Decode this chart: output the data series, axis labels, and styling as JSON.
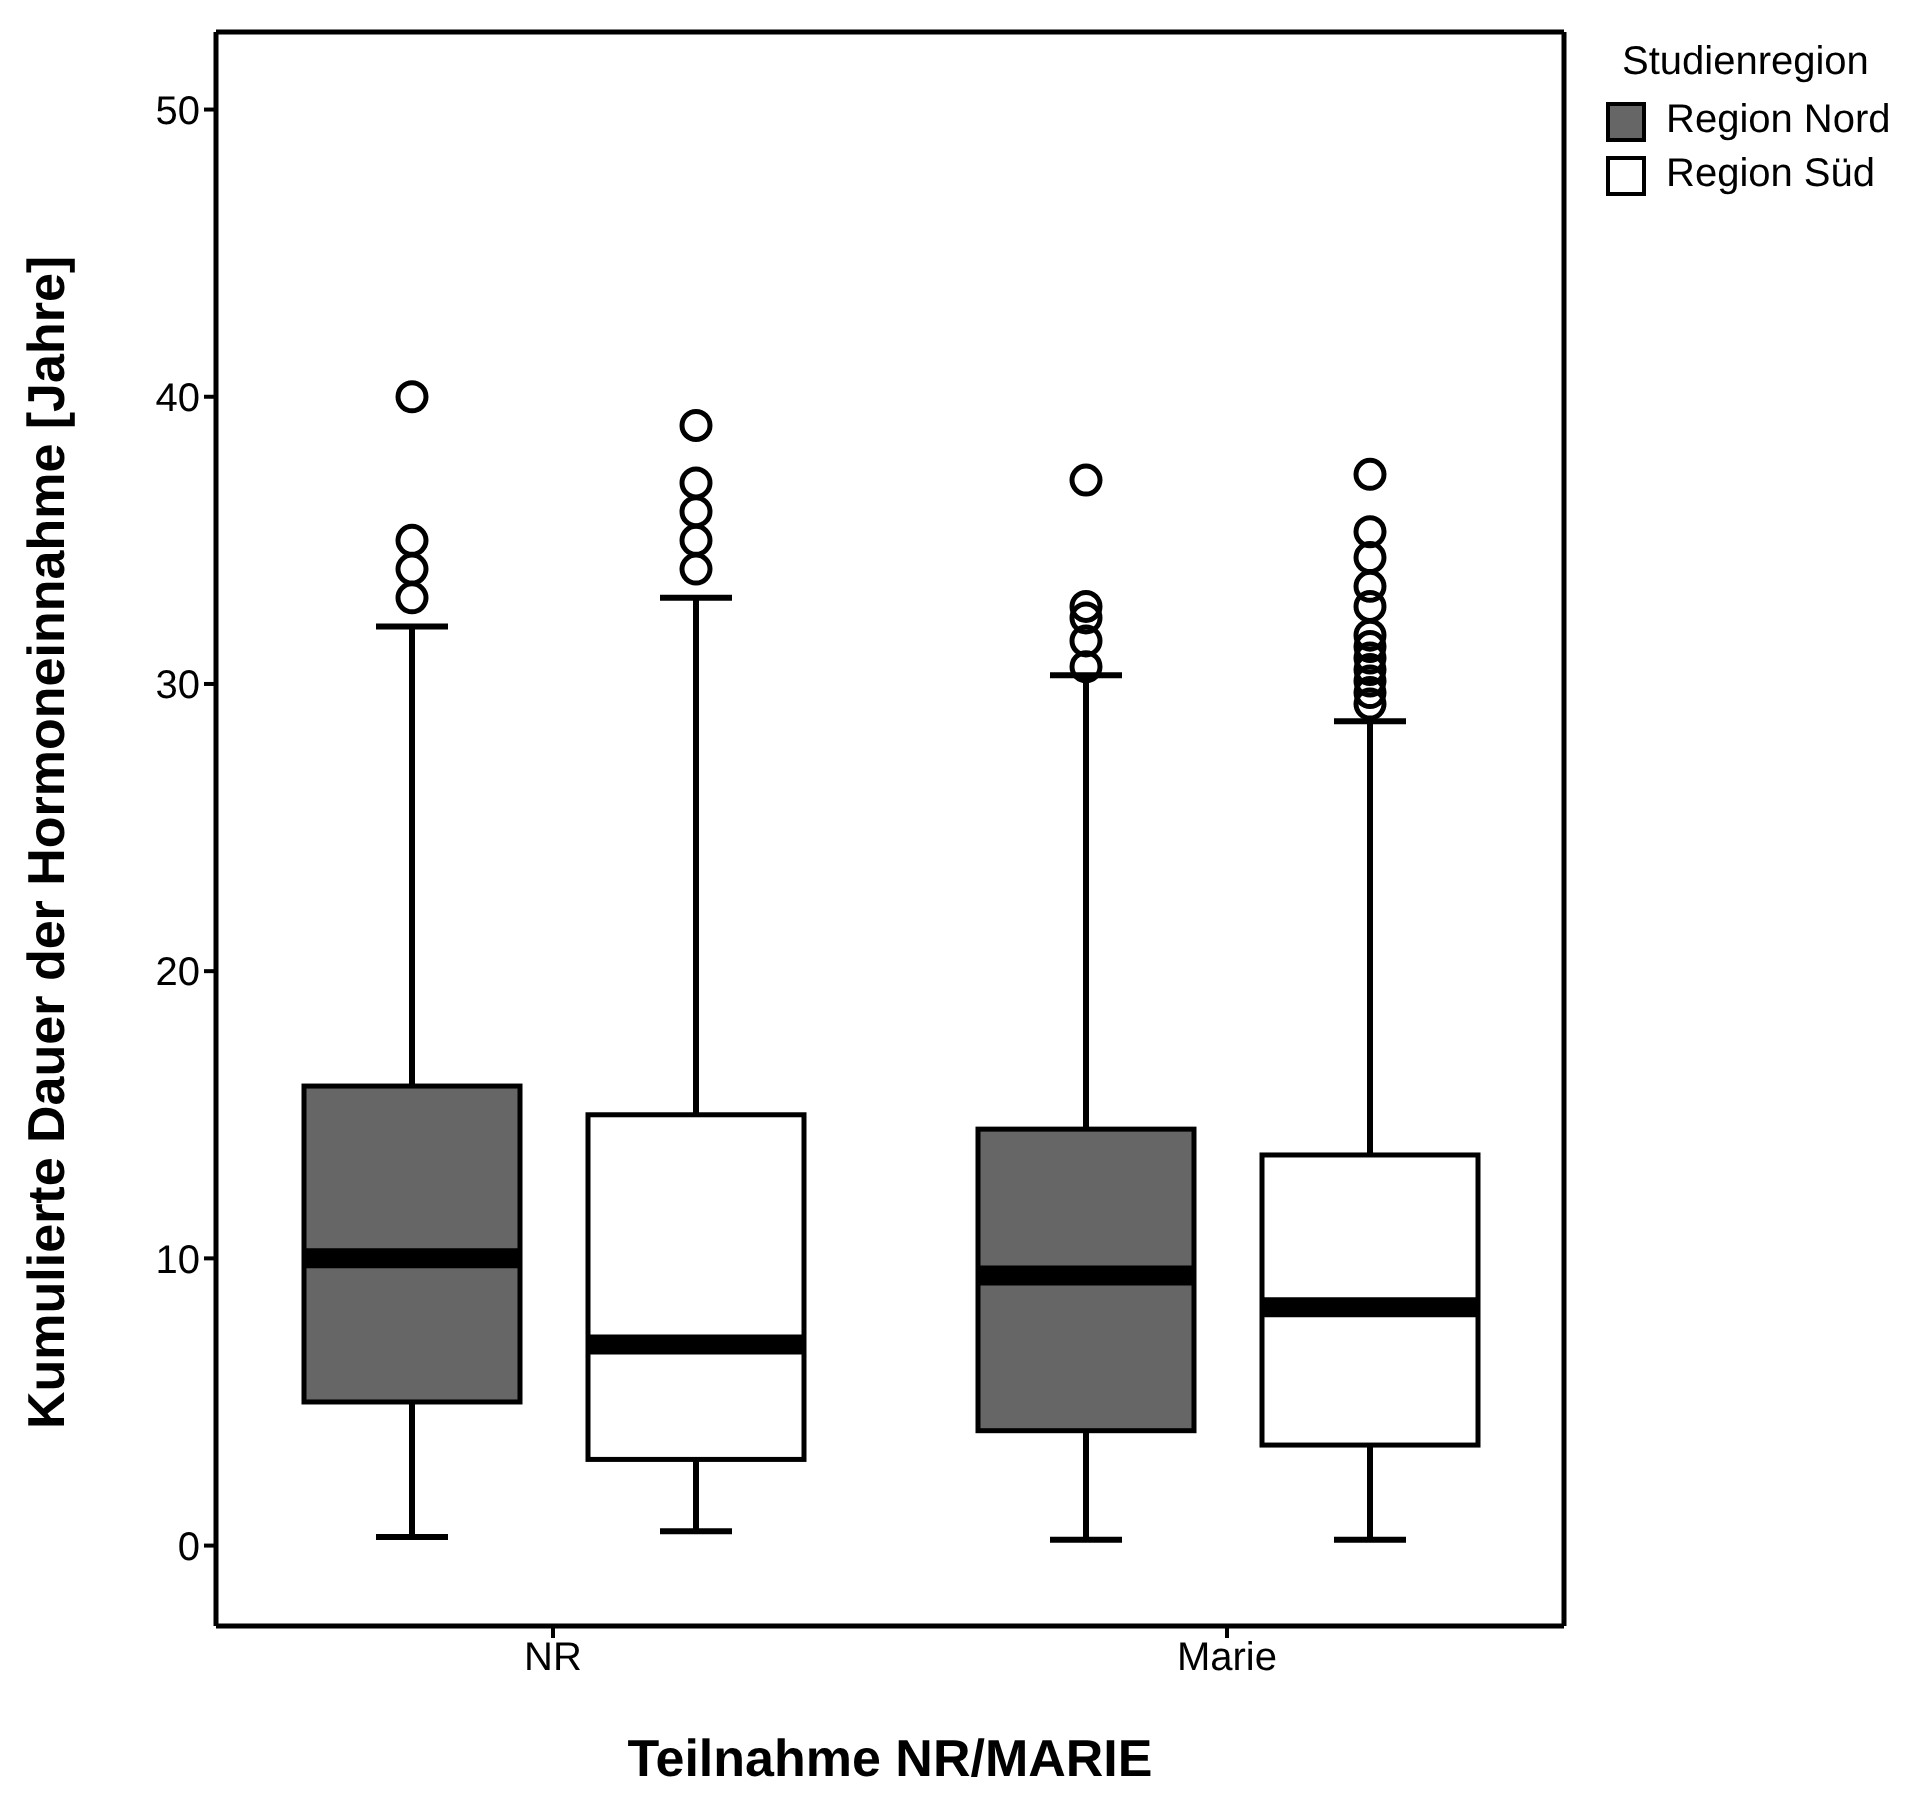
{
  "chart_data": {
    "type": "box",
    "xlabel": "Teilnahme NR/MARIE",
    "ylabel": "Kumulierte Dauer der Hormoneinnahme [Jahre]",
    "legend_title": "Studienregion",
    "legend": "top right",
    "categories": [
      "NR",
      "Marie"
    ],
    "ylim": [
      -2.8,
      52.7
    ],
    "yticks": [
      0,
      10,
      20,
      30,
      40,
      50
    ],
    "series": [
      {
        "name": "Region Nord",
        "color": "#666666",
        "boxes": [
          {
            "low": 0.3,
            "q1": 5,
            "median": 10,
            "q3": 16,
            "high": 32,
            "outliers": [
              33,
              34,
              35,
              40
            ]
          },
          {
            "low": 0.2,
            "q1": 4,
            "median": 9.4,
            "q3": 14.5,
            "high": 30.3,
            "outliers": [
              30.6,
              31.5,
              32.3,
              32.7,
              37.1
            ]
          }
        ]
      },
      {
        "name": "Region Süd",
        "color": "#ffffff",
        "boxes": [
          {
            "low": 0.5,
            "q1": 3,
            "median": 7,
            "q3": 15,
            "high": 33,
            "outliers": [
              34,
              35,
              36,
              37,
              39
            ]
          },
          {
            "low": 0.2,
            "q1": 3.5,
            "median": 8.3,
            "q3": 13.6,
            "high": 28.7,
            "outliers": [
              29.3,
              29.7,
              30.1,
              30.5,
              30.9,
              31.3,
              31.7,
              32.7,
              33.4,
              34.4,
              35.3,
              37.3
            ]
          }
        ]
      }
    ]
  }
}
